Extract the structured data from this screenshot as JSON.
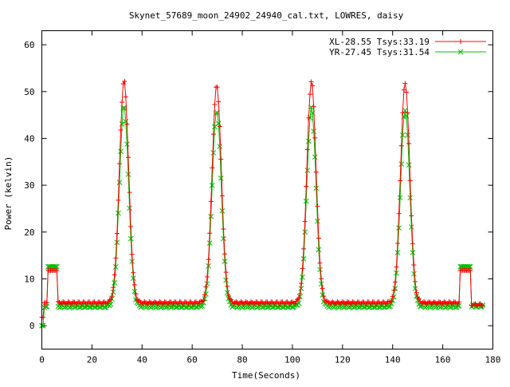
{
  "chart_data": {
    "type": "line",
    "title": "Skynet_57689_moon_24902_24940_cal.txt, LOWRES, daisy",
    "xlabel": "Time(Seconds)",
    "ylabel": "Power (kelvin)",
    "xlim": [
      0,
      180
    ],
    "ylim": [
      -5,
      63
    ],
    "xticks": [
      0,
      20,
      40,
      60,
      80,
      100,
      120,
      140,
      160,
      180
    ],
    "yticks": [
      0,
      10,
      20,
      30,
      40,
      50,
      60
    ],
    "legend_position": "top-right",
    "grid": false,
    "peaks": [
      {
        "center": 32.8,
        "xl_height": 52.2,
        "yr_height": 46.8
      },
      {
        "center": 69.8,
        "xl_height": 51.3,
        "yr_height": 46.0
      },
      {
        "center": 107.6,
        "xl_height": 52.1,
        "yr_height": 46.5
      },
      {
        "center": 145.0,
        "xl_height": 51.8,
        "yr_height": 46.2
      }
    ],
    "series": [
      {
        "name": "XL-28.55 Tsys:33.19",
        "color": "#ff0000",
        "marker": "plus",
        "baseline": 4.9,
        "cal_on_level": 11.8,
        "cal_off_level": 4.5,
        "start_value": 1.8
      },
      {
        "name": "YR-27.45 Tsys:31.54",
        "color": "#00c000",
        "marker": "cross",
        "baseline": 4.1,
        "cal_on_level": 12.6,
        "cal_off_level": 4.2,
        "start_value": 0.0
      }
    ],
    "cal_windows": [
      [
        1.5,
        6.3
      ],
      [
        166.8,
        171.0
      ]
    ],
    "time_range": [
      0,
      176
    ],
    "sample_step": 0.5
  }
}
